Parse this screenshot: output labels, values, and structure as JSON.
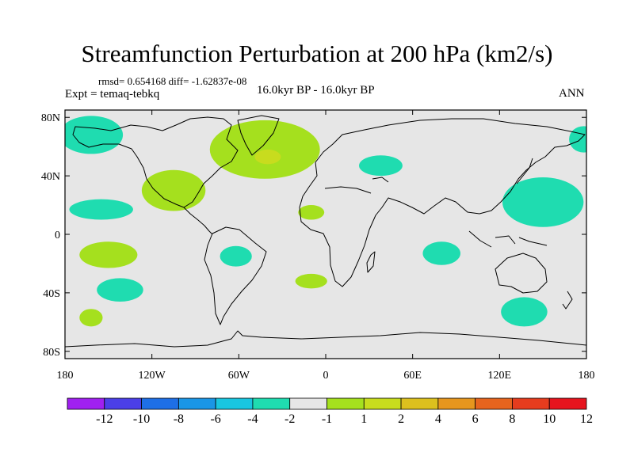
{
  "title": "Streamfunction Perturbation at 200 hPa (km2/s)",
  "stats": "rmsd= 0.654168 diff= -1.62837e-08",
  "expt": "Expt = temaq-tebkq",
  "period": "16.0kyr BP - 16.0kyr BP",
  "season": "ANN",
  "map": {
    "lon_ticks": [
      "180",
      "120W",
      "60W",
      "0",
      "60E",
      "120E",
      "180"
    ],
    "lat_ticks": [
      "80N",
      "40N",
      "0",
      "40S",
      "80S"
    ],
    "background_color": "#e6e6e6"
  },
  "colorbar": {
    "colors": [
      "#a020f0",
      "#4b3fe8",
      "#1e6fe6",
      "#1a96e6",
      "#19c6e0",
      "#1fdcb0",
      "#e6e6e6",
      "#a5e01e",
      "#c8dc1e",
      "#dcc01e",
      "#e6961e",
      "#e6641e",
      "#e63c1e",
      "#e6141e"
    ],
    "labels": [
      "-12",
      "-10",
      "-8",
      "-6",
      "-4",
      "-2",
      "-1",
      "1",
      "2",
      "4",
      "6",
      "8",
      "10",
      "12"
    ]
  },
  "anomalies": [
    {
      "lon": -162,
      "lat": 68,
      "rx_deg": 22,
      "ry_deg": 13,
      "level": "-1 to -2",
      "color": "#1fdcb0"
    },
    {
      "lon": 178,
      "lat": 65,
      "rx_deg": 10,
      "ry_deg": 9,
      "level": "-1 to -2",
      "color": "#1fdcb0"
    },
    {
      "lon": -42,
      "lat": 58,
      "rx_deg": 38,
      "ry_deg": 20,
      "level": "1 to 2",
      "color": "#a5e01e"
    },
    {
      "lon": -40,
      "lat": 53,
      "rx_deg": 9,
      "ry_deg": 5,
      "level": "2 to 4",
      "color": "#c8dc1e"
    },
    {
      "lon": -105,
      "lat": 30,
      "rx_deg": 22,
      "ry_deg": 14,
      "level": "1 to 2",
      "color": "#a5e01e"
    },
    {
      "lon": -155,
      "lat": 17,
      "rx_deg": 22,
      "ry_deg": 7,
      "level": "-1 to -2",
      "color": "#1fdcb0"
    },
    {
      "lon": -150,
      "lat": -14,
      "rx_deg": 20,
      "ry_deg": 9,
      "level": "1 to 2",
      "color": "#a5e01e"
    },
    {
      "lon": -142,
      "lat": -38,
      "rx_deg": 16,
      "ry_deg": 8,
      "level": "-1 to -2",
      "color": "#1fdcb0"
    },
    {
      "lon": -162,
      "lat": -57,
      "rx_deg": 8,
      "ry_deg": 6,
      "level": "1 to 2",
      "color": "#a5e01e"
    },
    {
      "lon": -62,
      "lat": -15,
      "rx_deg": 11,
      "ry_deg": 7,
      "level": "-1 to -2",
      "color": "#1fdcb0"
    },
    {
      "lon": -10,
      "lat": 15,
      "rx_deg": 9,
      "ry_deg": 5,
      "level": "1 to 2",
      "color": "#a5e01e"
    },
    {
      "lon": -10,
      "lat": -32,
      "rx_deg": 11,
      "ry_deg": 5,
      "level": "1 to 2",
      "color": "#a5e01e"
    },
    {
      "lon": 38,
      "lat": 47,
      "rx_deg": 15,
      "ry_deg": 7,
      "level": "-1 to -2",
      "color": "#1fdcb0"
    },
    {
      "lon": 80,
      "lat": -13,
      "rx_deg": 13,
      "ry_deg": 8,
      "level": "-1 to -2",
      "color": "#1fdcb0"
    },
    {
      "lon": 150,
      "lat": 22,
      "rx_deg": 28,
      "ry_deg": 17,
      "level": "-1 to -2",
      "color": "#1fdcb0"
    },
    {
      "lon": 137,
      "lat": -53,
      "rx_deg": 16,
      "ry_deg": 10,
      "level": "-1 to -2",
      "color": "#1fdcb0"
    }
  ]
}
